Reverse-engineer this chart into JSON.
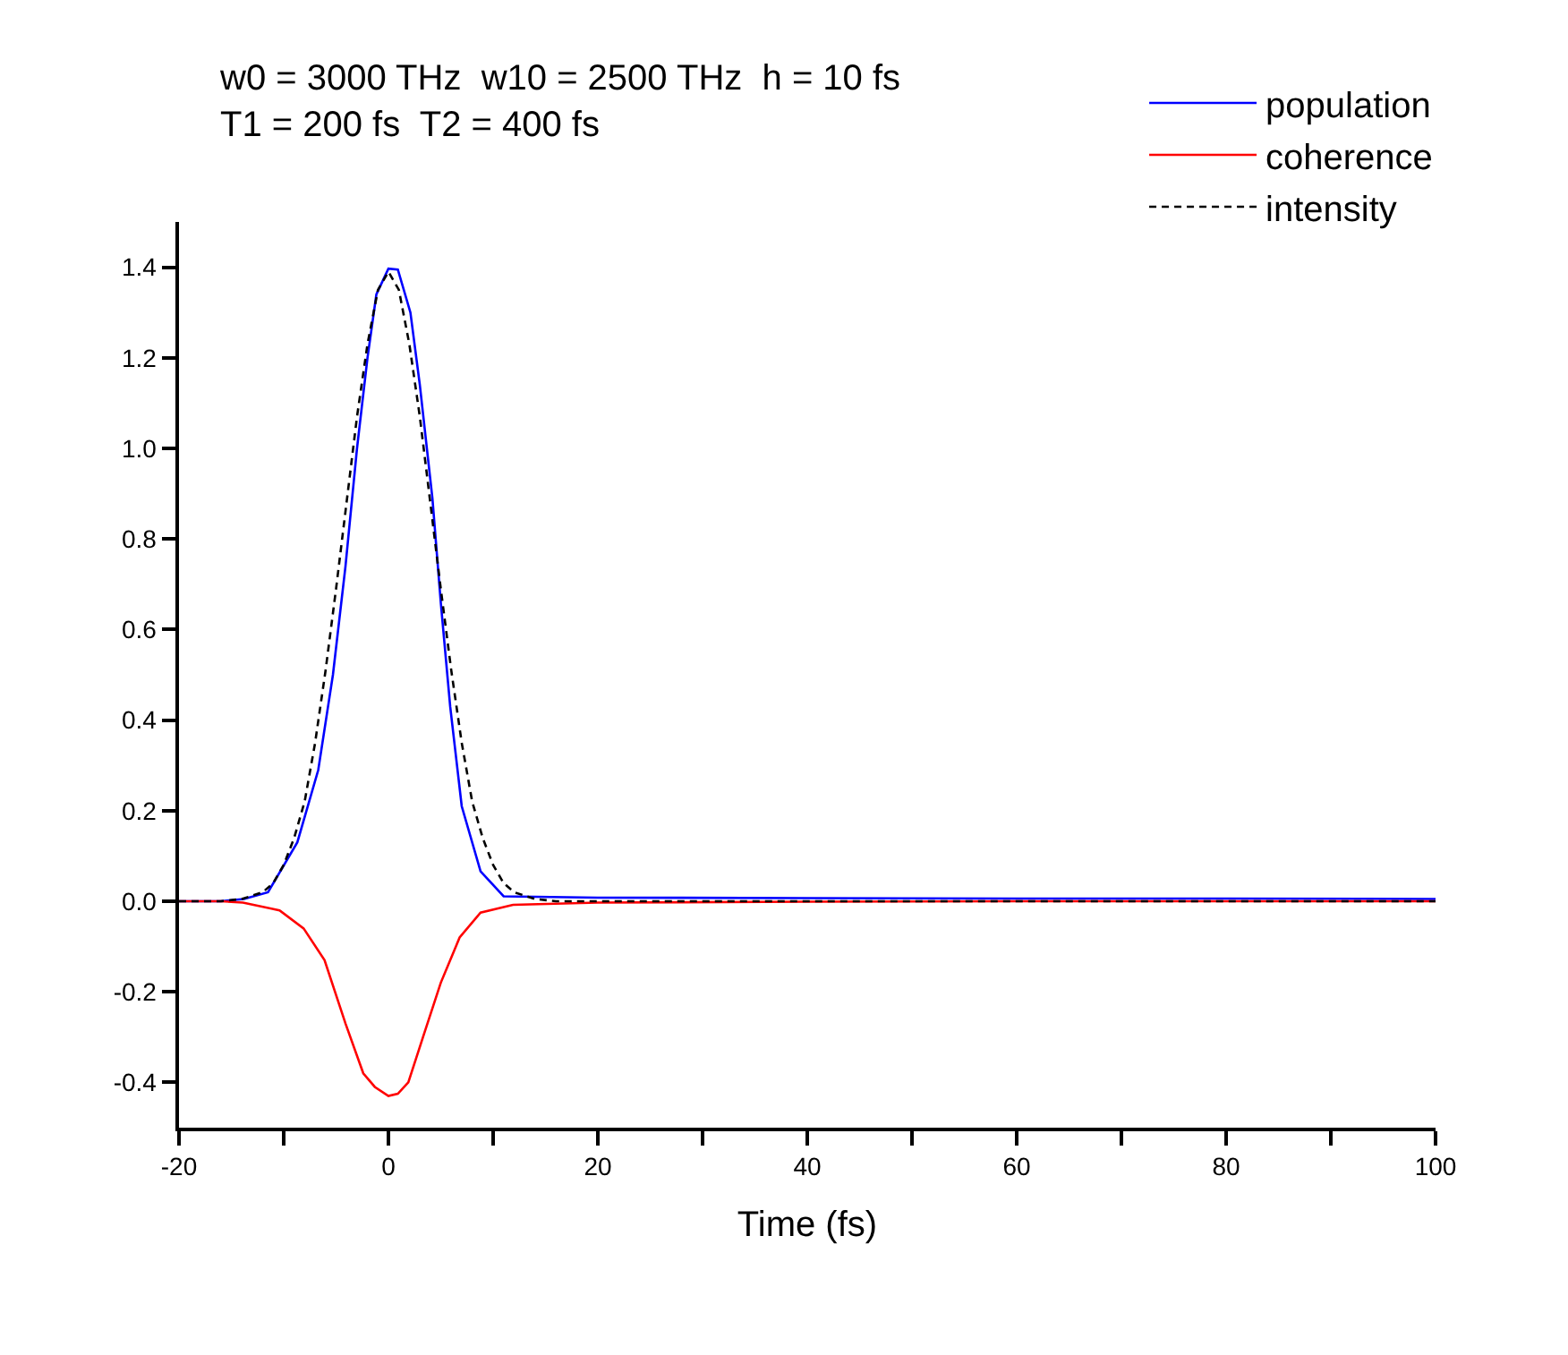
{
  "chart_data": {
    "type": "line",
    "title": "w0 = 3000 THz  w10 = 2500 THz  h = 10 fs",
    "subtitle": "T1 = 200 fs  T2 = 400 fs",
    "xlabel": "Time (fs)",
    "xlim": [
      -20,
      100
    ],
    "xticks": [
      -20,
      {
        "value": -10,
        "label": null
      },
      0,
      {
        "value": 10,
        "label": null
      },
      20,
      {
        "value": 30,
        "label": null
      },
      40,
      {
        "value": 50,
        "label": null
      },
      60,
      {
        "value": 70,
        "label": null
      },
      80,
      {
        "value": 90,
        "label": null
      },
      100
    ],
    "ylim": [
      -0.5,
      1.5
    ],
    "yticks": [
      -0.4,
      -0.2,
      {
        "value": 0,
        "label": "0.0"
      },
      0.2,
      0.4,
      0.6,
      0.8,
      {
        "value": 1,
        "label": "1.0"
      },
      1.2,
      1.4
    ],
    "legend": "top right",
    "marker": "none",
    "series": [
      {
        "name": "population",
        "color": "#0000ff",
        "line_style": "solid",
        "x": [
          -20,
          -16,
          -13.8,
          -11.5,
          -8.7,
          -6.7,
          -5.3,
          -4.1,
          -3.0,
          -2.0,
          -1.15,
          0.0,
          0.9,
          2.1,
          3.0,
          4.2,
          5.0,
          5.9,
          7.0,
          8.8,
          11.0,
          20,
          40,
          60,
          80,
          100
        ],
        "values": [
          0,
          0,
          0.005,
          0.02,
          0.13,
          0.29,
          0.5,
          0.74,
          1.0,
          1.2,
          1.34,
          1.397,
          1.395,
          1.3,
          1.14,
          0.89,
          0.66,
          0.43,
          0.21,
          0.066,
          0.011,
          0.008,
          0.007,
          0.006,
          0.006,
          0.005
        ]
      },
      {
        "name": "coherence",
        "color": "#ff0000",
        "line_style": "solid",
        "x": [
          -20,
          -16,
          -13.9,
          -10.4,
          -8.1,
          -6.1,
          -4.1,
          -2.4,
          -1.3,
          0.0,
          0.9,
          1.9,
          3.3,
          5.0,
          6.8,
          8.8,
          11.9,
          20,
          40,
          60,
          80,
          100
        ],
        "values": [
          0,
          0,
          -0.003,
          -0.02,
          -0.06,
          -0.13,
          -0.27,
          -0.38,
          -0.41,
          -0.43,
          -0.425,
          -0.4,
          -0.3,
          -0.18,
          -0.08,
          -0.025,
          -0.008,
          -0.003,
          -0.001,
          0,
          0,
          0
        ]
      },
      {
        "name": "intensity",
        "color": "#000000",
        "line_style": "dashed",
        "x": [
          -20,
          -16,
          -14,
          -12,
          -11,
          -10,
          -9,
          -8,
          -7,
          -6,
          -5,
          -4,
          -3,
          -2,
          -1,
          0,
          1,
          2,
          3,
          4,
          5,
          6,
          7,
          8,
          9,
          10,
          11,
          12,
          14,
          16,
          20,
          40,
          60,
          80,
          100
        ],
        "values": [
          0,
          0,
          0.005,
          0.02,
          0.04,
          0.08,
          0.14,
          0.22,
          0.35,
          0.51,
          0.69,
          0.88,
          1.07,
          1.23,
          1.35,
          1.39,
          1.35,
          1.23,
          1.07,
          0.88,
          0.69,
          0.51,
          0.35,
          0.22,
          0.14,
          0.08,
          0.04,
          0.02,
          0.005,
          0,
          0,
          0,
          0,
          0,
          0
        ]
      }
    ]
  }
}
